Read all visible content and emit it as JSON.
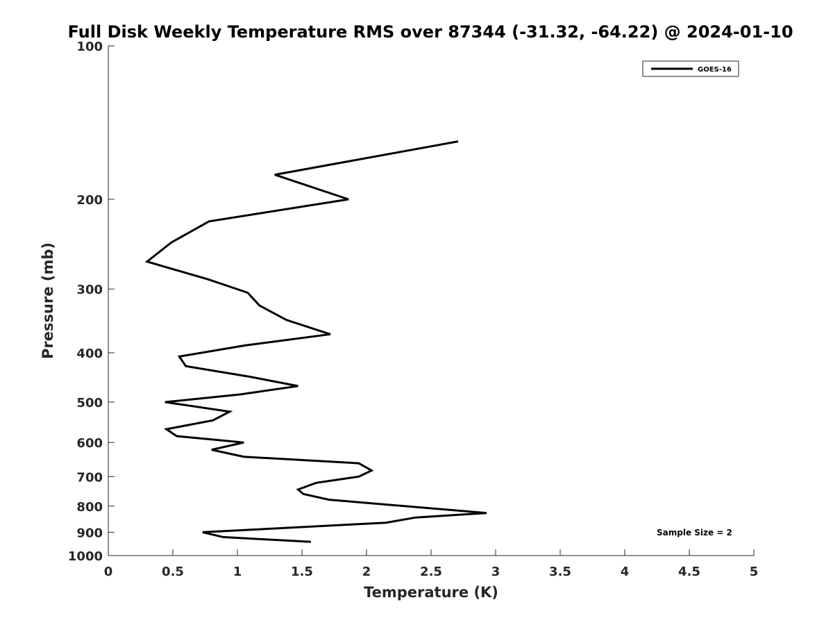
{
  "chart_data": {
    "type": "line",
    "title": "Full Disk Weekly Temperature RMS over 87344 (-31.32, -64.22) @ 2024-01-10",
    "xlabel": "Temperature (K)",
    "ylabel": "Pressure (mb)",
    "xlim": [
      0,
      5
    ],
    "ylim": [
      100,
      1000
    ],
    "y_scale": "log",
    "y_reversed": true,
    "grid": false,
    "xticks": [
      0,
      0.5,
      1,
      1.5,
      2,
      2.5,
      3,
      3.5,
      4,
      4.5,
      5
    ],
    "xtick_labels": [
      "0",
      "0.5",
      "1",
      "1.5",
      "2",
      "2.5",
      "3",
      "3.5",
      "4",
      "4.5",
      "5"
    ],
    "yticks": [
      100,
      200,
      300,
      400,
      500,
      600,
      700,
      800,
      900,
      1000
    ],
    "ytick_labels": [
      "100",
      "200",
      "300",
      "400",
      "500",
      "600",
      "700",
      "800",
      "900",
      "1000"
    ],
    "legend": {
      "placement": "top-right",
      "entries": [
        "GOES-16"
      ]
    },
    "annotation": "Sample Size = 2",
    "series": [
      {
        "name": "GOES-16",
        "color": "#000000",
        "points": [
          {
            "x": 2.71,
            "p": 154
          },
          {
            "x": 1.29,
            "p": 179
          },
          {
            "x": 1.86,
            "p": 200
          },
          {
            "x": 0.78,
            "p": 221
          },
          {
            "x": 0.49,
            "p": 243
          },
          {
            "x": 0.3,
            "p": 265
          },
          {
            "x": 0.77,
            "p": 287
          },
          {
            "x": 1.08,
            "p": 305
          },
          {
            "x": 1.17,
            "p": 323
          },
          {
            "x": 1.38,
            "p": 345
          },
          {
            "x": 1.72,
            "p": 368
          },
          {
            "x": 1.06,
            "p": 387
          },
          {
            "x": 0.55,
            "p": 407
          },
          {
            "x": 0.6,
            "p": 425
          },
          {
            "x": 1.1,
            "p": 446
          },
          {
            "x": 1.47,
            "p": 465
          },
          {
            "x": 1.02,
            "p": 483
          },
          {
            "x": 0.44,
            "p": 500
          },
          {
            "x": 0.94,
            "p": 522
          },
          {
            "x": 0.81,
            "p": 543
          },
          {
            "x": 0.45,
            "p": 565
          },
          {
            "x": 0.53,
            "p": 583
          },
          {
            "x": 1.05,
            "p": 600
          },
          {
            "x": 0.8,
            "p": 620
          },
          {
            "x": 1.05,
            "p": 640
          },
          {
            "x": 1.94,
            "p": 659
          },
          {
            "x": 2.04,
            "p": 681
          },
          {
            "x": 1.94,
            "p": 700
          },
          {
            "x": 1.61,
            "p": 720
          },
          {
            "x": 1.47,
            "p": 742
          },
          {
            "x": 1.51,
            "p": 757
          },
          {
            "x": 1.71,
            "p": 777
          },
          {
            "x": 2.93,
            "p": 825
          },
          {
            "x": 2.38,
            "p": 842
          },
          {
            "x": 2.15,
            "p": 862
          },
          {
            "x": 0.73,
            "p": 900
          },
          {
            "x": 0.89,
            "p": 920
          },
          {
            "x": 1.57,
            "p": 940
          }
        ]
      }
    ]
  }
}
